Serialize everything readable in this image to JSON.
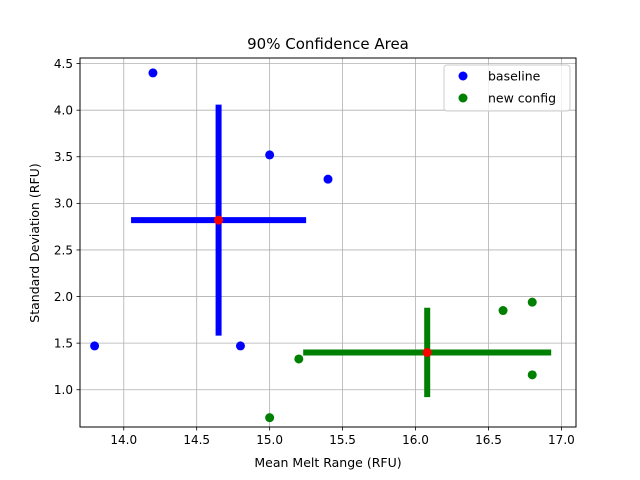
{
  "chart_data": {
    "type": "scatter",
    "title": "90% Confidence Area",
    "xlabel": "Mean Melt Range (RFU)",
    "ylabel": "Standard Deviation (RFU)",
    "xlim": [
      13.7,
      17.1
    ],
    "ylim": [
      0.6,
      4.56
    ],
    "xticks": [
      14.0,
      14.5,
      15.0,
      15.5,
      16.0,
      16.5,
      17.0
    ],
    "xtick_labels": [
      "14.0",
      "14.5",
      "15.0",
      "15.5",
      "16.0",
      "16.5",
      "17.0"
    ],
    "yticks": [
      1.0,
      1.5,
      2.0,
      2.5,
      3.0,
      3.5,
      4.0,
      4.5
    ],
    "ytick_labels": [
      "1.0",
      "1.5",
      "2.0",
      "2.5",
      "3.0",
      "3.5",
      "4.0",
      "4.5"
    ],
    "grid": true,
    "legend_position": "top-right",
    "series": [
      {
        "name": "baseline",
        "color": "#0000ff",
        "points": [
          [
            13.8,
            1.47
          ],
          [
            14.2,
            4.4
          ],
          [
            14.8,
            1.47
          ],
          [
            15.0,
            3.52
          ],
          [
            15.4,
            3.26
          ]
        ],
        "center": [
          14.65,
          2.82
        ],
        "x_interval": [
          14.05,
          15.25
        ],
        "y_interval": [
          1.58,
          4.06
        ]
      },
      {
        "name": "new config",
        "color": "#008000",
        "points": [
          [
            15.0,
            0.7
          ],
          [
            15.2,
            1.33
          ],
          [
            16.6,
            1.85
          ],
          [
            16.8,
            1.94
          ],
          [
            16.8,
            1.16
          ]
        ],
        "center": [
          16.08,
          1.4
        ],
        "x_interval": [
          15.23,
          16.93
        ],
        "y_interval": [
          0.92,
          1.88
        ]
      }
    ],
    "center_color": "#ff0000"
  }
}
